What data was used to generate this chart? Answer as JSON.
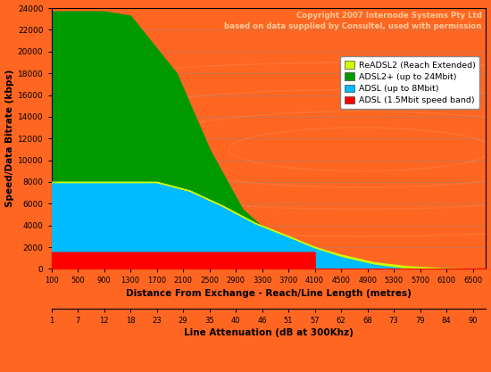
{
  "title_line1": "Copyright 2007 Internode Systems Pty Ltd",
  "title_line2": "based on data supplied by Consultel, used with permission",
  "xlabel": "Distance From Exchange - Reach/Line Length (metres)",
  "xlabel2": "Line Attenuation (dB at 300Khz)",
  "ylabel": "Speed/Data Bitrate (kbps)",
  "bg_color": "#FF6622",
  "x_ticks": [
    100,
    500,
    900,
    1300,
    1700,
    2100,
    2500,
    2900,
    3300,
    3700,
    4100,
    4500,
    4900,
    5300,
    5700,
    6100,
    6500
  ],
  "atten_ticks": [
    1,
    7,
    12,
    18,
    23,
    29,
    35,
    40,
    46,
    51,
    57,
    62,
    68,
    73,
    79,
    84,
    90
  ],
  "ylim": [
    0,
    24000
  ],
  "xlim": [
    100,
    6700
  ],
  "y_ticks": [
    0,
    2000,
    4000,
    6000,
    8000,
    10000,
    12000,
    14000,
    16000,
    18000,
    20000,
    22000,
    24000
  ],
  "legend_labels": [
    "ReADSL2 (Reach Extended)",
    "ADSL2+ (up to 24Mbit)",
    "ADSL (up to 8Mbit)",
    "ADSL (1.5Mbit speed band)"
  ],
  "legend_colors": [
    "#CCFF00",
    "#009900",
    "#00BBFF",
    "#FF0000"
  ],
  "adsl2plus_points": [
    [
      100,
      23700
    ],
    [
      900,
      23700
    ],
    [
      1300,
      23300
    ],
    [
      2000,
      18000
    ],
    [
      2500,
      11000
    ],
    [
      3000,
      5500
    ],
    [
      3500,
      2800
    ],
    [
      4000,
      1400
    ],
    [
      4500,
      700
    ],
    [
      5000,
      350
    ],
    [
      5500,
      150
    ],
    [
      6000,
      50
    ],
    [
      6500,
      10
    ],
    [
      6700,
      0
    ]
  ],
  "adsl8_points": [
    [
      100,
      8000
    ],
    [
      1700,
      8000
    ],
    [
      2200,
      7200
    ],
    [
      2700,
      5800
    ],
    [
      3200,
      4200
    ],
    [
      3700,
      3000
    ],
    [
      4100,
      2000
    ],
    [
      4500,
      1200
    ],
    [
      5000,
      500
    ],
    [
      5500,
      100
    ],
    [
      5800,
      20
    ],
    [
      6000,
      0
    ],
    [
      6700,
      0
    ]
  ],
  "readsl2_points": [
    [
      100,
      8000
    ],
    [
      1700,
      8000
    ],
    [
      2200,
      7200
    ],
    [
      2700,
      5800
    ],
    [
      3200,
      4200
    ],
    [
      3700,
      3000
    ],
    [
      4100,
      2000
    ],
    [
      4500,
      1300
    ],
    [
      5000,
      600
    ],
    [
      5500,
      250
    ],
    [
      6000,
      80
    ],
    [
      6500,
      15
    ],
    [
      6700,
      0
    ]
  ],
  "adsl15_points": [
    [
      100,
      1544
    ],
    [
      4100,
      1544
    ],
    [
      4101,
      0
    ],
    [
      6700,
      0
    ]
  ],
  "green_color": "#009900",
  "cyan_color": "#00BBFF",
  "yellow_color": "#CCFF00",
  "red_color": "#FF0000",
  "copyright_color": "#FFCC99",
  "legend_bg": "#FFFFFF",
  "grid_color": "#888888"
}
